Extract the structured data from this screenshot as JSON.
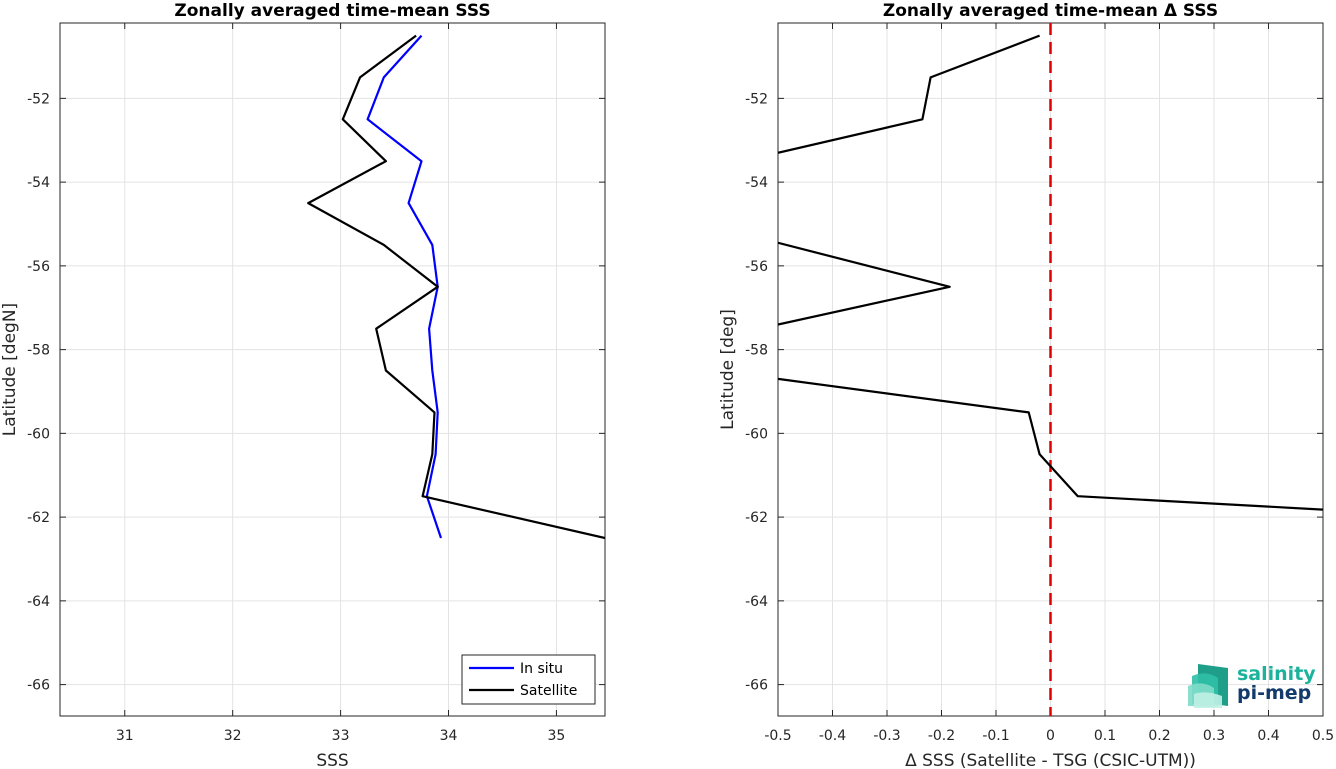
{
  "chart_data": [
    {
      "type": "line",
      "title": "Zonally averaged time-mean SSS",
      "xlabel": "SSS",
      "ylabel": "Latitude [degN]",
      "xlim": [
        30.4,
        35.45
      ],
      "ylim": [
        -66.75,
        -50.2
      ],
      "xticks": [
        31,
        32,
        33,
        34,
        35
      ],
      "yticks": [
        -66,
        -64,
        -62,
        -60,
        -58,
        -56,
        -54,
        -52
      ],
      "grid": true,
      "legend_position": "bottom-right",
      "colors": {
        "In situ": "#0000ff",
        "Satellite": "#000000"
      },
      "series": [
        {
          "name": "In situ",
          "x": [
            33.75,
            33.4,
            33.25,
            33.75,
            33.63,
            33.85,
            33.9,
            33.82,
            33.85,
            33.9,
            33.88,
            33.8,
            33.93
          ],
          "y": [
            -50.5,
            -51.5,
            -52.5,
            -53.5,
            -54.5,
            -55.5,
            -56.5,
            -57.5,
            -58.5,
            -59.5,
            -60.5,
            -61.5,
            -62.5
          ]
        },
        {
          "name": "Satellite",
          "x": [
            33.7,
            33.18,
            33.02,
            33.42,
            32.7,
            33.4,
            33.9,
            33.33,
            33.42,
            33.87,
            33.85,
            33.76,
            35.45
          ],
          "y": [
            -50.5,
            -51.5,
            -52.5,
            -53.5,
            -54.5,
            -55.5,
            -56.5,
            -57.5,
            -58.5,
            -59.5,
            -60.5,
            -61.5,
            -62.5
          ]
        }
      ]
    },
    {
      "type": "line",
      "title": "Zonally averaged time-mean Δ SSS",
      "xlabel": "Δ SSS (Satellite - TSG (CSIC-UTM))",
      "ylabel": "Latitude [deg]",
      "xlim": [
        -0.5,
        0.5
      ],
      "ylim": [
        -66.75,
        -50.2
      ],
      "xticks": [
        -0.5,
        -0.4,
        -0.3,
        -0.2,
        -0.1,
        0,
        0.1,
        0.2,
        0.3,
        0.4,
        0.5
      ],
      "xticklabels": [
        "-0.5",
        "-0.4",
        "-0.3",
        "-0.2",
        "-0.1",
        "0",
        "0.1",
        "0.2",
        "0.3",
        "0.4",
        "0.5"
      ],
      "yticks": [
        -66,
        -64,
        -62,
        -60,
        -58,
        -56,
        -54,
        -52
      ],
      "grid": true,
      "reference_line": {
        "x": 0,
        "color": "#e00000",
        "style": "dashed"
      },
      "series": [
        {
          "segments": [
            {
              "x": [
                -0.02,
                -0.22,
                -0.235,
                -0.5
              ],
              "y": [
                -50.5,
                -51.5,
                -52.5,
                -53.3
              ]
            },
            {
              "x": [
                -0.5,
                -0.185,
                -0.5
              ],
              "y": [
                -55.45,
                -56.5,
                -57.4
              ]
            },
            {
              "x": [
                -0.5,
                -0.04,
                -0.02,
                0.05,
                0.5
              ],
              "y": [
                -58.7,
                -59.5,
                -60.5,
                -61.5,
                -61.82
              ]
            }
          ]
        }
      ]
    }
  ],
  "logo": {
    "line1": "salinity",
    "line2": "pi-mep",
    "color1": "#1bb39b",
    "color2": "#123b6b"
  }
}
